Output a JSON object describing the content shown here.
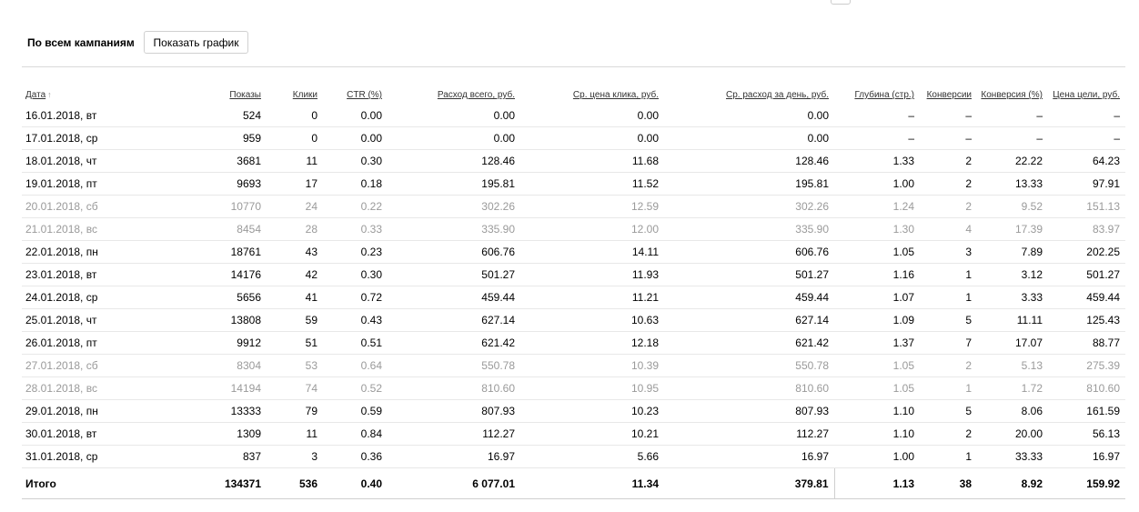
{
  "header": {
    "title": "По всем кампаниям",
    "button": "Показать график"
  },
  "table": {
    "columns": [
      "Дата",
      "Показы",
      "Клики",
      "CTR (%)",
      "Расход всего, руб.",
      "Ср. цена клика, руб.",
      "Ср. расход за день, руб.",
      "Глубина (стр.)",
      "Конверсии",
      "Конверсия (%)",
      "Цена цели, руб."
    ],
    "rows": [
      [
        "16.01.2018, вт",
        "524",
        "0",
        "0.00",
        "0.00",
        "0.00",
        "0.00",
        "–",
        "–",
        "–",
        "–"
      ],
      [
        "17.01.2018, ср",
        "959",
        "0",
        "0.00",
        "0.00",
        "0.00",
        "0.00",
        "–",
        "–",
        "–",
        "–"
      ],
      [
        "18.01.2018, чт",
        "3681",
        "11",
        "0.30",
        "128.46",
        "11.68",
        "128.46",
        "1.33",
        "2",
        "22.22",
        "64.23"
      ],
      [
        "19.01.2018, пт",
        "9693",
        "17",
        "0.18",
        "195.81",
        "11.52",
        "195.81",
        "1.00",
        "2",
        "13.33",
        "97.91"
      ],
      [
        "20.01.2018, сб",
        "10770",
        "24",
        "0.22",
        "302.26",
        "12.59",
        "302.26",
        "1.24",
        "2",
        "9.52",
        "151.13"
      ],
      [
        "21.01.2018, вс",
        "8454",
        "28",
        "0.33",
        "335.90",
        "12.00",
        "335.90",
        "1.30",
        "4",
        "17.39",
        "83.97"
      ],
      [
        "22.01.2018, пн",
        "18761",
        "43",
        "0.23",
        "606.76",
        "14.11",
        "606.76",
        "1.05",
        "3",
        "7.89",
        "202.25"
      ],
      [
        "23.01.2018, вт",
        "14176",
        "42",
        "0.30",
        "501.27",
        "11.93",
        "501.27",
        "1.16",
        "1",
        "3.12",
        "501.27"
      ],
      [
        "24.01.2018, ср",
        "5656",
        "41",
        "0.72",
        "459.44",
        "11.21",
        "459.44",
        "1.07",
        "1",
        "3.33",
        "459.44"
      ],
      [
        "25.01.2018, чт",
        "13808",
        "59",
        "0.43",
        "627.14",
        "10.63",
        "627.14",
        "1.09",
        "5",
        "11.11",
        "125.43"
      ],
      [
        "26.01.2018, пт",
        "9912",
        "51",
        "0.51",
        "621.42",
        "12.18",
        "621.42",
        "1.37",
        "7",
        "17.07",
        "88.77"
      ],
      [
        "27.01.2018, сб",
        "8304",
        "53",
        "0.64",
        "550.78",
        "10.39",
        "550.78",
        "1.05",
        "2",
        "5.13",
        "275.39"
      ],
      [
        "28.01.2018, вс",
        "14194",
        "74",
        "0.52",
        "810.60",
        "10.95",
        "810.60",
        "1.05",
        "1",
        "1.72",
        "810.60"
      ],
      [
        "29.01.2018, пн",
        "13333",
        "79",
        "0.59",
        "807.93",
        "10.23",
        "807.93",
        "1.10",
        "5",
        "8.06",
        "161.59"
      ],
      [
        "30.01.2018, вт",
        "1309",
        "11",
        "0.84",
        "112.27",
        "10.21",
        "112.27",
        "1.10",
        "2",
        "20.00",
        "56.13"
      ],
      [
        "31.01.2018, ср",
        "837",
        "3",
        "0.36",
        "16.97",
        "5.66",
        "16.97",
        "1.00",
        "1",
        "33.33",
        "16.97"
      ]
    ],
    "total": [
      "Итого",
      "134371",
      "536",
      "0.40",
      "6 077.01",
      "11.34",
      "379.81",
      "1.13",
      "38",
      "8.92",
      "159.92"
    ]
  }
}
